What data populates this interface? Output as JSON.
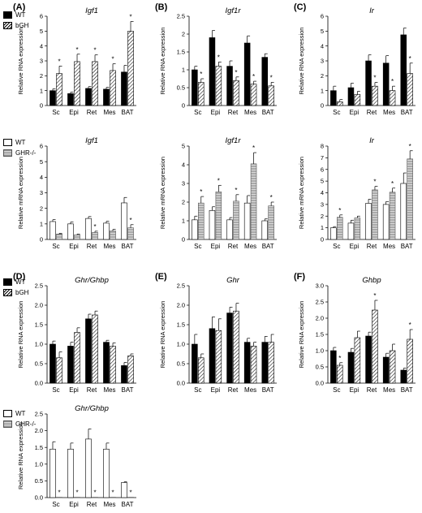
{
  "legends": {
    "wt_bgh": {
      "wt": "WT",
      "mut": "bGH"
    },
    "wt_ghr": {
      "wt": "WT",
      "mut": "GHR-/-"
    }
  },
  "colors": {
    "wt_bgh_wt": "#000000",
    "bgh": "hatched",
    "ghr_wt": "#ffffff",
    "ghr_ko": "grey-striped"
  },
  "chart_data": [
    {
      "id": "A1",
      "type": "bar",
      "panel_letter": "(A)",
      "title": "Igf1",
      "ylabel": "Relative RNA expression",
      "ylim": [
        0,
        6
      ],
      "yticks": [
        0,
        1,
        2,
        3,
        4,
        5,
        6
      ],
      "categories": [
        "Sc",
        "Epi",
        "Ret",
        "Mes",
        "BAT"
      ],
      "series": [
        {
          "name": "WT",
          "values": [
            1.0,
            0.8,
            1.15,
            1.1,
            2.25
          ],
          "errors": [
            0.12,
            0.1,
            0.12,
            0.12,
            0.45
          ]
        },
        {
          "name": "bGH",
          "values": [
            2.15,
            2.95,
            2.95,
            2.35,
            5.0
          ],
          "errors": [
            0.5,
            0.5,
            0.45,
            0.45,
            0.65
          ]
        }
      ],
      "sig": [
        "*",
        "*",
        "*",
        "*",
        "*"
      ]
    },
    {
      "id": "B1",
      "type": "bar",
      "panel_letter": "(B)",
      "title": "Igf1r",
      "ylabel": "Relative RNA expression",
      "ylim": [
        0,
        2.5
      ],
      "yticks": [
        0,
        0.5,
        1,
        1.5,
        2,
        2.5
      ],
      "categories": [
        "Sc",
        "Epi",
        "Ret",
        "Mes",
        "BAT"
      ],
      "series": [
        {
          "name": "WT",
          "values": [
            1.0,
            1.9,
            1.1,
            1.75,
            1.35
          ],
          "errors": [
            0.1,
            0.2,
            0.15,
            0.2,
            0.1
          ]
        },
        {
          "name": "bGH",
          "values": [
            0.65,
            1.1,
            0.7,
            0.6,
            0.55
          ],
          "errors": [
            0.1,
            0.12,
            0.1,
            0.08,
            0.1
          ]
        }
      ],
      "sig": [
        "*",
        "*",
        "*",
        "*",
        "*"
      ]
    },
    {
      "id": "C1",
      "type": "bar",
      "panel_letter": "(C)",
      "title": "Ir",
      "ylabel": "Relative RNA expression",
      "ylim": [
        0,
        6
      ],
      "yticks": [
        0,
        1,
        2,
        3,
        4,
        5,
        6
      ],
      "categories": [
        "Sc",
        "Epi",
        "Ret",
        "Mes",
        "BAT"
      ],
      "series": [
        {
          "name": "WT",
          "values": [
            1.0,
            1.2,
            3.0,
            2.85,
            4.75
          ],
          "errors": [
            0.3,
            0.3,
            0.4,
            0.5,
            0.45
          ]
        },
        {
          "name": "bGH",
          "values": [
            0.25,
            0.75,
            1.3,
            1.0,
            2.15
          ],
          "errors": [
            0.15,
            0.2,
            0.25,
            0.3,
            0.7
          ]
        }
      ],
      "sig": [
        "",
        "",
        "*",
        "*",
        "*"
      ]
    },
    {
      "id": "A2",
      "type": "bar",
      "panel_letter": "",
      "title": "Igf1",
      "ylabel": "Relative mRNA expression",
      "ylim": [
        0,
        6
      ],
      "yticks": [
        0,
        1,
        2,
        3,
        4,
        5,
        6
      ],
      "categories": [
        "Sc",
        "Epi",
        "Ret",
        "Mes",
        "BAT"
      ],
      "series": [
        {
          "name": "WT",
          "values": [
            1.15,
            1.0,
            1.35,
            1.05,
            2.35
          ],
          "errors": [
            0.12,
            0.12,
            0.12,
            0.12,
            0.35
          ]
        },
        {
          "name": "GHR-/-",
          "values": [
            0.35,
            0.3,
            0.45,
            0.55,
            0.75
          ],
          "errors": [
            0.05,
            0.05,
            0.08,
            0.1,
            0.2
          ]
        }
      ],
      "sig": [
        "",
        "",
        "*",
        "",
        "*"
      ]
    },
    {
      "id": "B2",
      "type": "bar",
      "panel_letter": "",
      "title": "Igf1r",
      "ylabel": "Relative mRNA expression",
      "ylim": [
        0,
        5
      ],
      "yticks": [
        0,
        1,
        2,
        3,
        4,
        5
      ],
      "categories": [
        "Sc",
        "Epi",
        "Ret",
        "Mes",
        "BAT"
      ],
      "series": [
        {
          "name": "WT",
          "values": [
            1.05,
            1.55,
            1.05,
            1.95,
            1.0
          ],
          "errors": [
            0.2,
            0.2,
            0.12,
            0.4,
            0.1
          ]
        },
        {
          "name": "GHR-/-",
          "values": [
            1.95,
            2.55,
            2.05,
            4.05,
            1.8
          ],
          "errors": [
            0.35,
            0.35,
            0.35,
            0.6,
            0.2
          ]
        }
      ],
      "sig": [
        "*",
        "*",
        "*",
        "*",
        "*"
      ]
    },
    {
      "id": "C2",
      "type": "bar",
      "panel_letter": "",
      "title": "Ir",
      "ylabel": "Relative mRNA expression",
      "ylim": [
        0,
        8
      ],
      "yticks": [
        0,
        1,
        2,
        3,
        4,
        5,
        6,
        7,
        8
      ],
      "categories": [
        "Sc",
        "Epi",
        "Ret",
        "Mes",
        "BAT"
      ],
      "series": [
        {
          "name": "WT",
          "values": [
            1.0,
            1.4,
            3.1,
            3.0,
            4.8
          ],
          "errors": [
            0.1,
            0.25,
            0.35,
            0.25,
            0.9
          ]
        },
        {
          "name": "GHR-/-",
          "values": [
            1.9,
            1.85,
            4.25,
            4.05,
            6.9
          ],
          "errors": [
            0.2,
            0.15,
            0.3,
            0.35,
            0.7
          ]
        }
      ],
      "sig": [
        "*",
        "",
        "*",
        "*",
        "*"
      ]
    },
    {
      "id": "D1",
      "type": "bar",
      "panel_letter": "(D)",
      "title": "Ghr/Ghbp",
      "ylabel": "Relative RNA expression",
      "ylim": [
        0,
        2.5
      ],
      "yticks": [
        0,
        0.5,
        1,
        1.5,
        2,
        2.5
      ],
      "ytick_labels": [
        "0.0",
        "0.5",
        "1.0",
        "1.5",
        "2.0",
        "2.5"
      ],
      "categories": [
        "Sc",
        "Epi",
        "Ret",
        "Mes",
        "BAT"
      ],
      "series": [
        {
          "name": "WT",
          "values": [
            1.0,
            0.95,
            1.65,
            1.05,
            0.45
          ],
          "errors": [
            0.08,
            0.1,
            0.12,
            0.05,
            0.08
          ]
        },
        {
          "name": "bGH",
          "values": [
            0.65,
            1.3,
            1.75,
            0.95,
            0.7
          ],
          "errors": [
            0.15,
            0.12,
            0.1,
            0.08,
            0.05
          ]
        }
      ],
      "sig": [
        "",
        "",
        "",
        "",
        ""
      ]
    },
    {
      "id": "E1",
      "type": "bar",
      "panel_letter": "(E)",
      "title": "Ghr",
      "ylabel": "Relative RNA expression",
      "ylim": [
        0,
        2.5
      ],
      "yticks": [
        0,
        0.5,
        1,
        1.5,
        2,
        2.5
      ],
      "ytick_labels": [
        "0.0",
        "0.5",
        "1.0",
        "1.5",
        "2.0",
        "2.5"
      ],
      "categories": [
        "Sc",
        "Epi",
        "Ret",
        "Mes",
        "BAT"
      ],
      "series": [
        {
          "name": "WT",
          "values": [
            1.0,
            1.4,
            1.8,
            1.05,
            1.05
          ],
          "errors": [
            0.25,
            0.3,
            0.15,
            0.1,
            0.15
          ]
        },
        {
          "name": "bGH",
          "values": [
            0.65,
            1.35,
            1.85,
            0.95,
            1.05
          ],
          "errors": [
            0.1,
            0.3,
            0.2,
            0.1,
            0.2
          ]
        }
      ],
      "sig": [
        "",
        "",
        "",
        "",
        ""
      ]
    },
    {
      "id": "F1",
      "type": "bar",
      "panel_letter": "(F)",
      "title": "Ghbp",
      "ylabel": "Relative RNA expression",
      "ylim": [
        0,
        3.0
      ],
      "yticks": [
        0,
        0.5,
        1,
        1.5,
        2,
        2.5,
        3
      ],
      "ytick_labels": [
        "0.0",
        "0.5",
        "1.0",
        "1.5",
        "2.0",
        "2.5",
        "3.0"
      ],
      "categories": [
        "Sc",
        "Epi",
        "Ret",
        "Mes",
        "BAT"
      ],
      "series": [
        {
          "name": "WT",
          "values": [
            1.0,
            0.95,
            1.45,
            0.8,
            0.4
          ],
          "errors": [
            0.1,
            0.12,
            0.12,
            0.12,
            0.06
          ]
        },
        {
          "name": "bGH",
          "values": [
            0.55,
            1.4,
            2.25,
            1.0,
            1.35
          ],
          "errors": [
            0.08,
            0.2,
            0.3,
            0.2,
            0.3
          ]
        }
      ],
      "sig": [
        "*",
        "",
        "*",
        "",
        "*"
      ]
    },
    {
      "id": "D2",
      "type": "bar",
      "panel_letter": "",
      "title": "Ghr/Ghbp",
      "ylabel": "Relative RNA expression",
      "ylim": [
        0,
        2.5
      ],
      "yticks": [
        0,
        0.5,
        1,
        1.5,
        2,
        2.5
      ],
      "ytick_labels": [
        "0.0",
        "0.5",
        "1.0",
        "1.5",
        "2.0",
        "2.5"
      ],
      "categories": [
        "Sc",
        "Epi",
        "Ret",
        "Mes",
        "BAT"
      ],
      "series": [
        {
          "name": "WT",
          "values": [
            1.45,
            1.45,
            1.75,
            1.45,
            0.45
          ],
          "errors": [
            0.22,
            0.18,
            0.3,
            0.18,
            0.02
          ]
        },
        {
          "name": "GHR-/-",
          "values": [
            0.01,
            0.01,
            0.01,
            0.01,
            0.01
          ],
          "errors": [
            0,
            0,
            0,
            0,
            0
          ]
        }
      ],
      "sig": [
        "*",
        "*",
        "*",
        "*",
        "*"
      ]
    }
  ]
}
